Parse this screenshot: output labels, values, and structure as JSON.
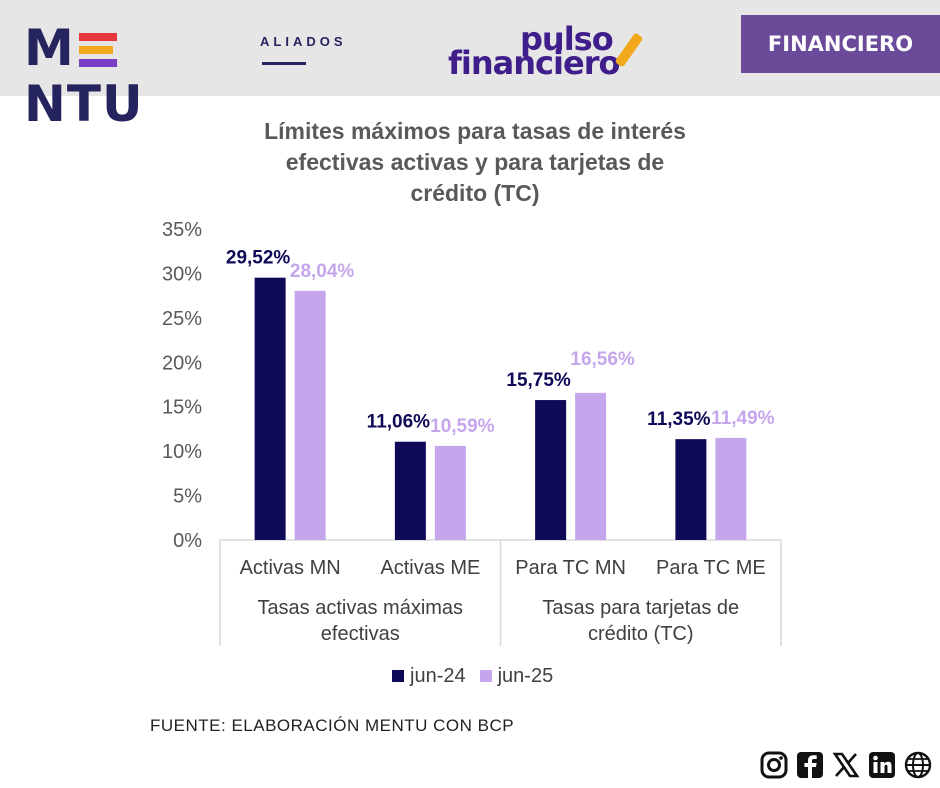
{
  "header": {
    "brand_name": "MENTU",
    "brand_sub": "ALIADOS",
    "logo_line1": "pulso",
    "logo_line2": "financiero",
    "badge": "FINANCIERO",
    "colors": {
      "band": "#e6e6e6",
      "navy": "#26245f",
      "badge": "#6b4a9a"
    }
  },
  "chart_data": {
    "type": "bar",
    "title": "Límites máximos para tasas de interés efectivas activas y para tarjetas de crédito (TC)",
    "title_lines": [
      "Límites máximos para tasas de interés",
      "efectivas activas y para tarjetas de",
      "crédito (TC)"
    ],
    "categories": [
      "Activas MN",
      "Activas ME",
      "Para TC MN",
      "Para TC ME"
    ],
    "groups": [
      {
        "label_lines": [
          "Tasas activas máximas",
          "efectivas"
        ],
        "categories": [
          "Activas MN",
          "Activas ME"
        ]
      },
      {
        "label_lines": [
          "Tasas para tarjetas de",
          "crédito (TC)"
        ],
        "categories": [
          "Para TC MN",
          "Para TC ME"
        ]
      }
    ],
    "series": [
      {
        "name": "jun-24",
        "color": "#0f0a57",
        "values": [
          29.52,
          11.06,
          15.75,
          11.35
        ],
        "labels": [
          "29,52%",
          "11,06%",
          "15,75%",
          "11,35%"
        ]
      },
      {
        "name": "jun-25",
        "color": "#c5a6ed",
        "values": [
          28.04,
          10.59,
          16.56,
          11.49
        ],
        "labels": [
          "28,04%",
          "10,59%",
          "16,56%",
          "11,49%"
        ]
      }
    ],
    "yticks": [
      "0%",
      "5%",
      "10%",
      "15%",
      "20%",
      "25%",
      "30%",
      "35%"
    ],
    "ylim": [
      0,
      35
    ],
    "grid": false,
    "legend_position": "bottom"
  },
  "source": "FUENTE: ELABORACIÓN MENTU CON BCP",
  "social": [
    "instagram-icon",
    "facebook-icon",
    "x-icon",
    "linkedin-icon",
    "globe-icon"
  ]
}
